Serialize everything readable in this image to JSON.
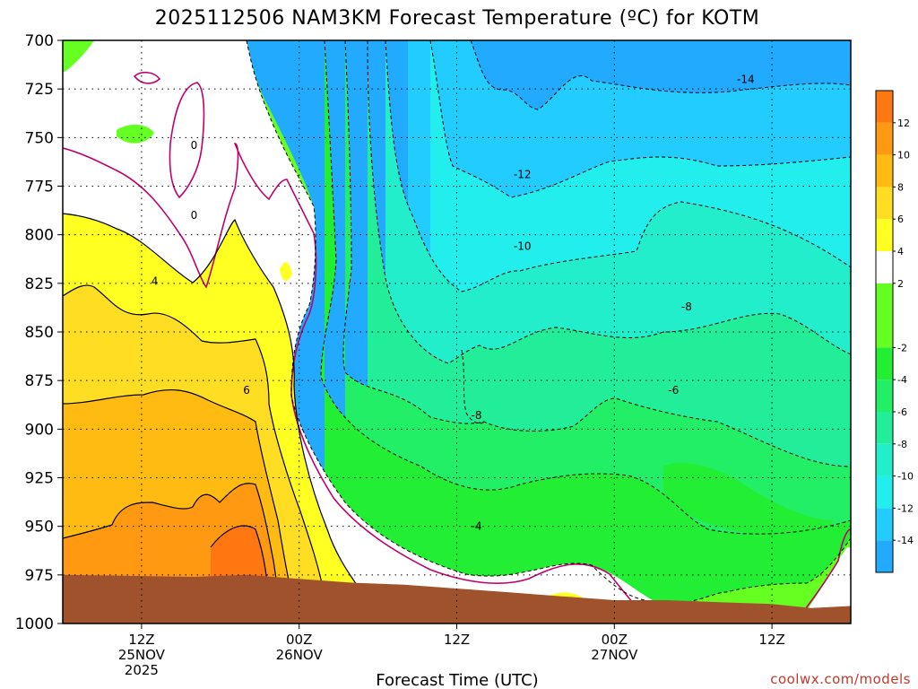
{
  "chart_data": {
    "type": "heatmap",
    "title": "2025112506 NAM3KM Forecast Temperature (ºC) for KOTM",
    "xlabel": "Forecast Time (UTC)",
    "ylabel": "",
    "credit": "coolwx.com/models",
    "y_axis": {
      "scale": "pressure",
      "inverted": true,
      "range": [
        1000,
        700
      ],
      "ticks": [
        "700",
        "725",
        "750",
        "775",
        "800",
        "825",
        "850",
        "875",
        "900",
        "925",
        "950",
        "975",
        "1000"
      ]
    },
    "x_axis": {
      "range_hours": [
        0,
        60
      ],
      "ticks": [
        {
          "hour": 6,
          "line1": "12Z",
          "line2": "25NOV",
          "line3": "2025"
        },
        {
          "hour": 18,
          "line1": "00Z",
          "line2": "26NOV",
          "line3": ""
        },
        {
          "hour": 30,
          "line1": "12Z",
          "line2": "",
          "line3": ""
        },
        {
          "hour": 42,
          "line1": "00Z",
          "line2": "27NOV",
          "line3": ""
        },
        {
          "hour": 54,
          "line1": "12Z",
          "line2": "",
          "line3": ""
        }
      ]
    },
    "grid": true,
    "colorbar": {
      "placement": "right",
      "levels": [
        -16,
        -14,
        -12,
        -10,
        -8,
        -6,
        -4,
        -2,
        2,
        4,
        6,
        8,
        10,
        12,
        14
      ],
      "tick_labels": [
        "-14",
        "-12",
        "-10",
        "-8",
        "-6",
        "-4",
        "-2",
        "2",
        "4",
        "6",
        "8",
        "10",
        "12"
      ],
      "colors": [
        "#22aaff",
        "#22ccff",
        "#22eeee",
        "#22eecc",
        "#22ee99",
        "#22ee66",
        "#22ee33",
        "#66ff22",
        "#ffffff",
        "#ffff22",
        "#ffdd22",
        "#ffbb11",
        "#ff9911",
        "#ff7711"
      ]
    },
    "bands": [
      {
        "level": -14,
        "color": "#22aaff"
      },
      {
        "level": -12,
        "color": "#22ccff"
      },
      {
        "level": -10,
        "color": "#22eeee"
      },
      {
        "level": -8,
        "color": "#22eecc"
      },
      {
        "level": -6,
        "color": "#22ee99"
      },
      {
        "level": -4,
        "color": "#22ee66"
      },
      {
        "level": -2,
        "color": "#22ee33"
      },
      {
        "level": 0,
        "color": "#66ff22"
      },
      {
        "level": 2,
        "color": "#ffffff"
      },
      {
        "level": 4,
        "color": "#ffff22"
      },
      {
        "level": 6,
        "color": "#ffdd22"
      },
      {
        "level": 8,
        "color": "#ffbb11"
      },
      {
        "level": 10,
        "color": "#ff9911"
      },
      {
        "level": 12,
        "color": "#ff7711"
      }
    ],
    "contour_labels": [
      {
        "text": "0",
        "hour": 10.0,
        "pressure": 754
      },
      {
        "text": "0",
        "hour": 10.0,
        "pressure": 790
      },
      {
        "text": "4",
        "hour": 7.0,
        "pressure": 824
      },
      {
        "text": "6",
        "hour": 14.0,
        "pressure": 880
      },
      {
        "text": "-14",
        "hour": 52.0,
        "pressure": 720
      },
      {
        "text": "-12",
        "hour": 35.0,
        "pressure": 769
      },
      {
        "text": "-10",
        "hour": 35.0,
        "pressure": 806
      },
      {
        "text": "-8",
        "hour": 47.5,
        "pressure": 837
      },
      {
        "text": "-6",
        "hour": 46.5,
        "pressure": 880
      },
      {
        "text": "-8",
        "hour": 31.5,
        "pressure": 893
      },
      {
        "text": "-4",
        "hour": 31.5,
        "pressure": 950
      }
    ],
    "ground_surface": {
      "color": "#a0522d",
      "points": [
        [
          0,
          975
        ],
        [
          10,
          976
        ],
        [
          14,
          975
        ],
        [
          18,
          977
        ],
        [
          22,
          979
        ],
        [
          26,
          980
        ],
        [
          30,
          982
        ],
        [
          34,
          984
        ],
        [
          38,
          986
        ],
        [
          42,
          988
        ],
        [
          46,
          988
        ],
        [
          50,
          989
        ],
        [
          54,
          990
        ],
        [
          57,
          992
        ],
        [
          60,
          991
        ]
      ]
    }
  }
}
